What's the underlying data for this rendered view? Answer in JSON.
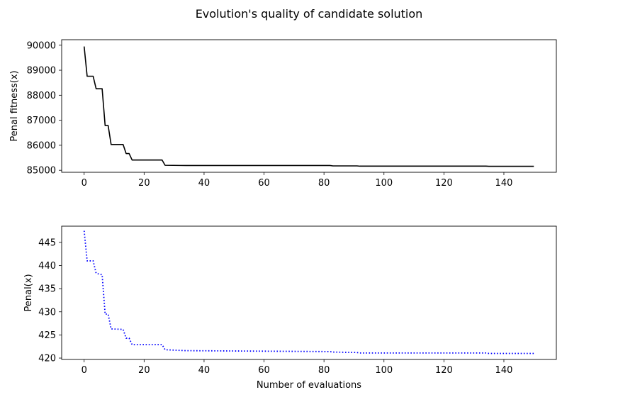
{
  "figure": {
    "title": "Evolution's quality of candidate solution"
  },
  "chart_data": [
    {
      "type": "line",
      "title": "",
      "xlabel": "",
      "ylabel": "Penal fitness(x)",
      "xlim": [
        -7.5,
        157.5
      ],
      "ylim": [
        84920,
        90220
      ],
      "xticks": [
        0,
        20,
        40,
        60,
        80,
        100,
        120,
        140
      ],
      "yticks": [
        85000,
        86000,
        87000,
        88000,
        89000,
        90000
      ],
      "grid": false,
      "legend": "none",
      "style": {
        "color": "#000000",
        "dash": "solid"
      },
      "series": [
        {
          "x": [
            0,
            1,
            3,
            4,
            6,
            7,
            8,
            9,
            13,
            14,
            15,
            16,
            26,
            27,
            34,
            82,
            83,
            91,
            92,
            134,
            135,
            150
          ],
          "y": [
            89950,
            88760,
            88760,
            88260,
            88260,
            86790,
            86790,
            86030,
            86030,
            85670,
            85670,
            85410,
            85410,
            85200,
            85190,
            85190,
            85175,
            85175,
            85165,
            85165,
            85160,
            85158
          ]
        }
      ]
    },
    {
      "type": "line",
      "title": "",
      "xlabel": "Number of evaluations",
      "ylabel": "Penal(x)",
      "xlim": [
        -7.5,
        157.5
      ],
      "ylim": [
        419.7,
        448.5
      ],
      "xticks": [
        0,
        20,
        40,
        60,
        80,
        100,
        120,
        140
      ],
      "yticks": [
        420,
        425,
        430,
        435,
        440,
        445
      ],
      "grid": false,
      "legend": "none",
      "style": {
        "color": "#0000ff",
        "dash": "dotted"
      },
      "series": [
        {
          "x": [
            0,
            1,
            3,
            4,
            6,
            7,
            8,
            9,
            13,
            14,
            15,
            16,
            26,
            27,
            34,
            82,
            83,
            91,
            92,
            134,
            135,
            150
          ],
          "y": [
            447.5,
            441.0,
            441.0,
            438.3,
            438.0,
            429.5,
            429.5,
            426.3,
            426.2,
            424.3,
            424.3,
            422.9,
            422.9,
            421.8,
            421.6,
            421.4,
            421.3,
            421.2,
            421.1,
            421.1,
            421.0,
            421.0
          ]
        }
      ]
    }
  ]
}
